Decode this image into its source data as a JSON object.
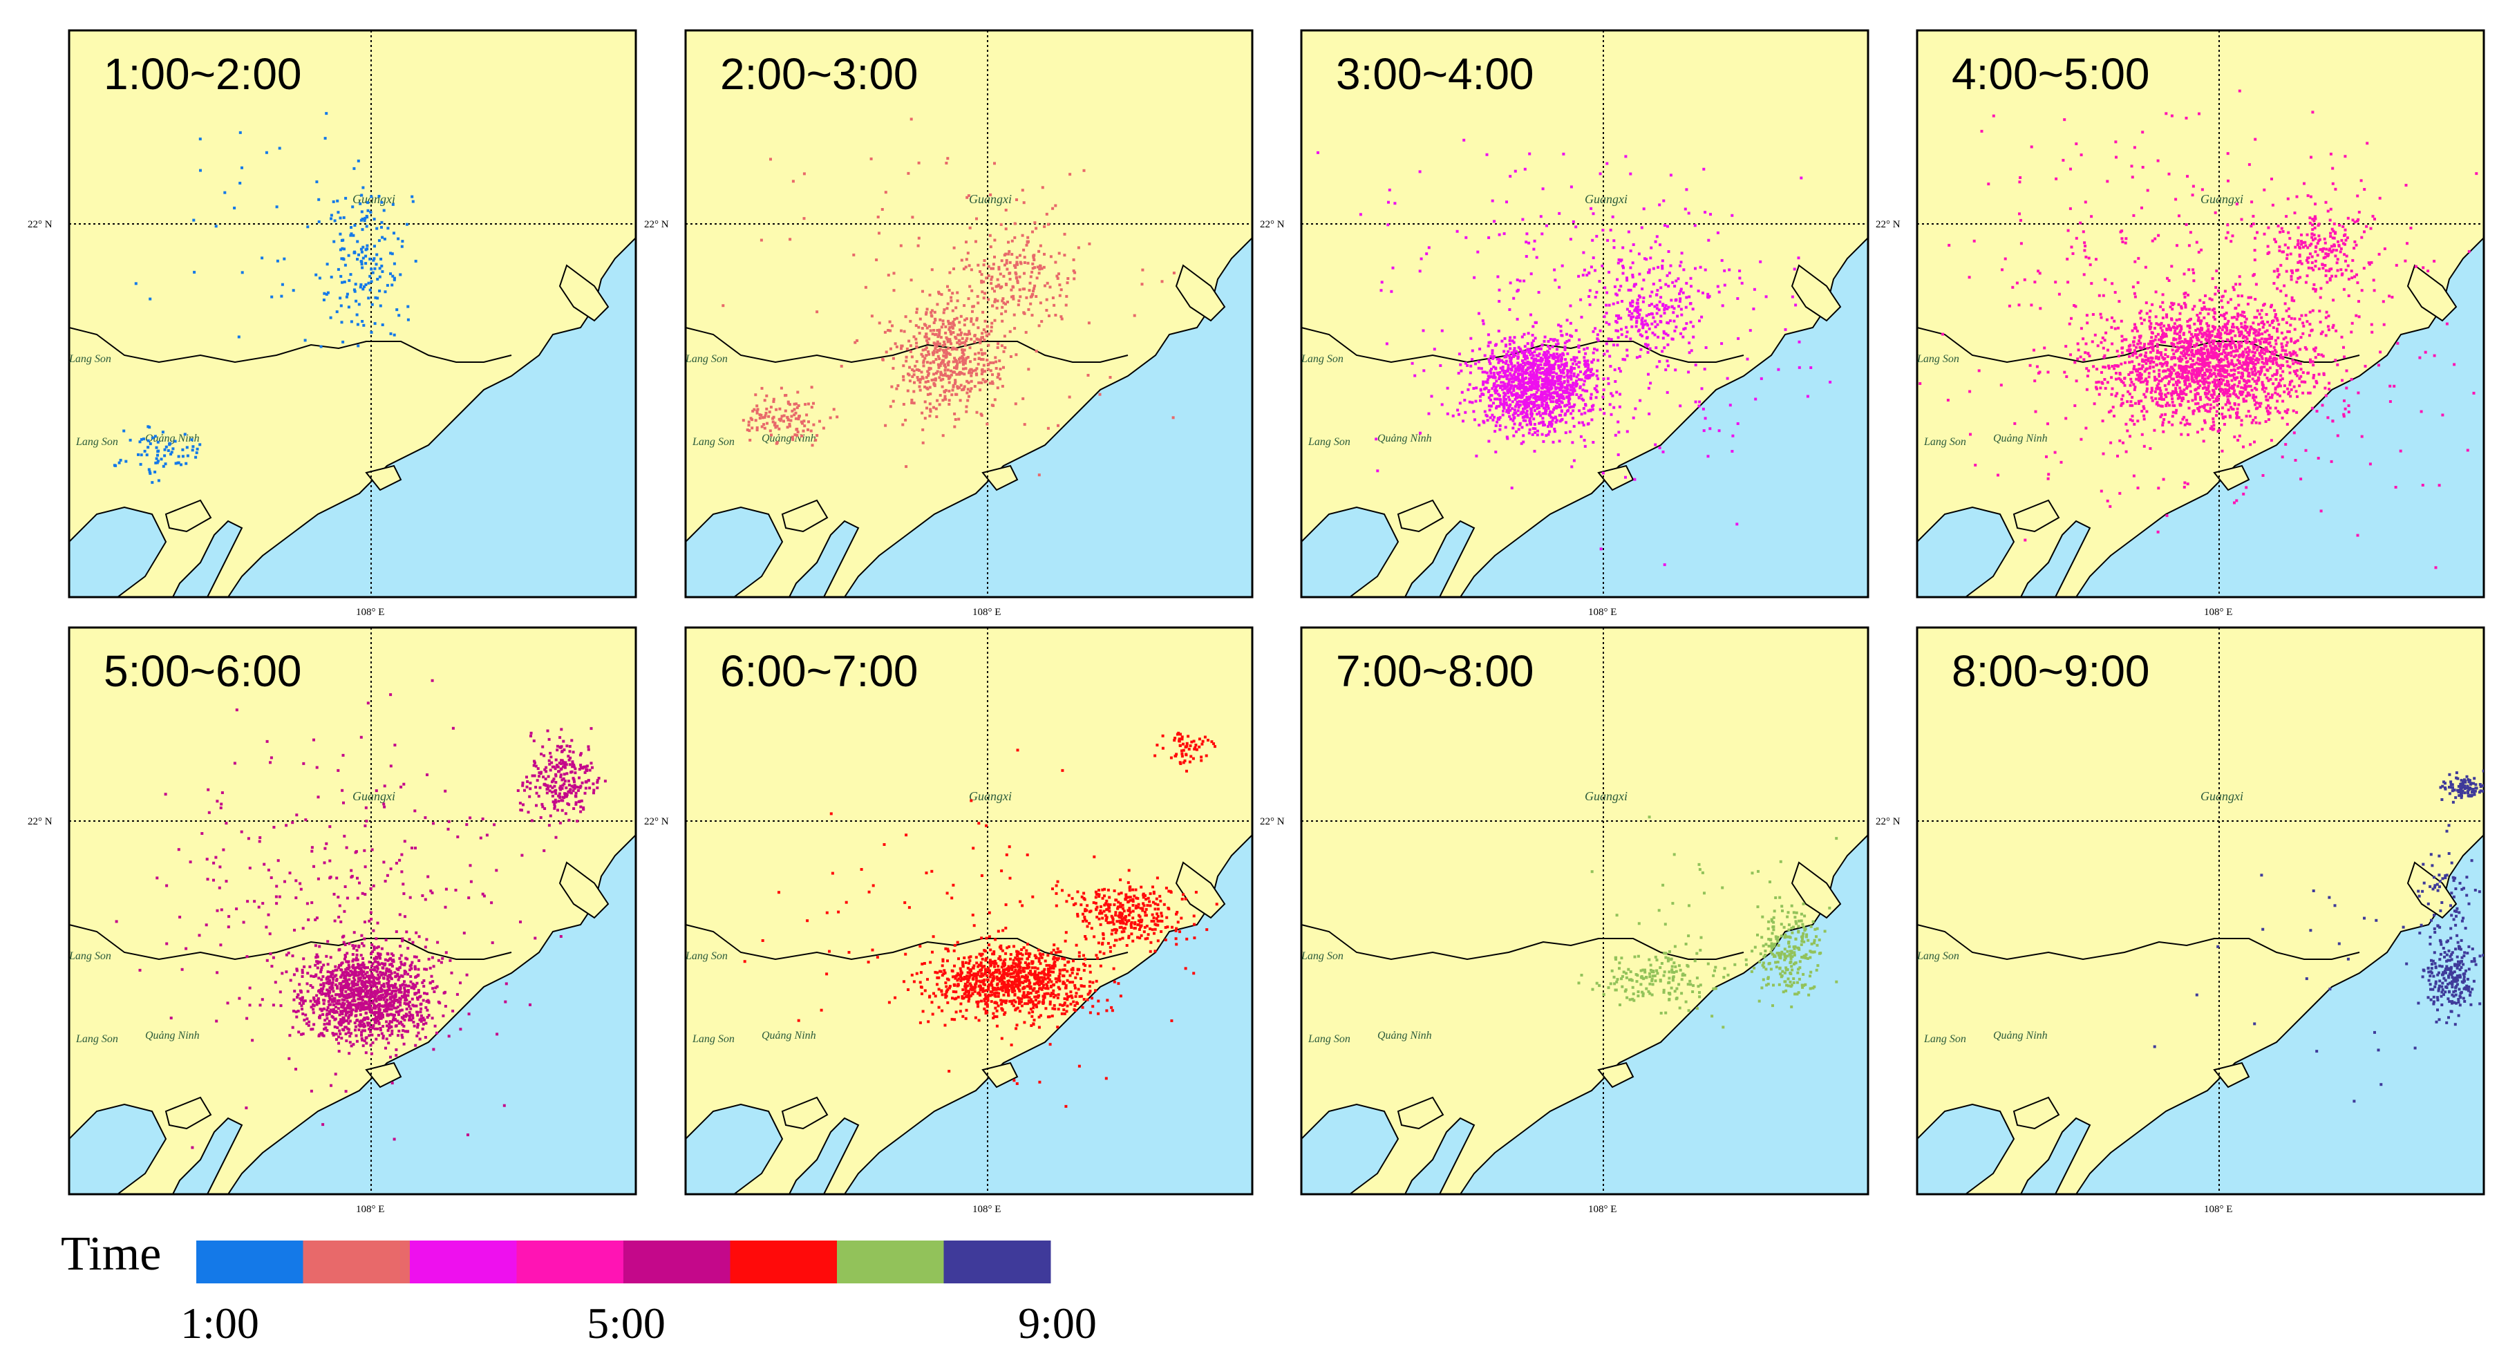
{
  "panels": [
    {
      "label": "1:00~2:00",
      "color": "#1479e8",
      "cluster": "early"
    },
    {
      "label": "2:00~3:00",
      "color": "#e8696a",
      "cluster": "central"
    },
    {
      "label": "3:00~4:00",
      "color": "#ee10ee",
      "cluster": "dense-west"
    },
    {
      "label": "4:00~5:00",
      "color": "#ff14b4",
      "cluster": "dense-central"
    },
    {
      "label": "5:00~6:00",
      "color": "#c4088a",
      "cluster": "dense-south"
    },
    {
      "label": "6:00~7:00",
      "color": "#ff0a0a",
      "cluster": "coastal"
    },
    {
      "label": "7:00~8:00",
      "color": "#92c25a",
      "cluster": "coastal-east"
    },
    {
      "label": "8:00~9:00",
      "color": "#3f3a9a",
      "cluster": "far-east"
    }
  ],
  "map_text": {
    "lat_label": "22° N",
    "lon_label": "108° E",
    "province_label": "Guangxi",
    "place_labels": [
      "Lang Son",
      "Lang Son",
      "Quảng Ninh"
    ]
  },
  "map_colors": {
    "land": "#fdfbb0",
    "sea": "#aee7fa",
    "outline": "#000000"
  },
  "legend": {
    "title": "Time",
    "ticks": [
      "1:00",
      "5:00",
      "9:00"
    ],
    "swatches": [
      "#1479e8",
      "#e8696a",
      "#ee10ee",
      "#ff14b4",
      "#c4088a",
      "#ff0a0a",
      "#92c25a",
      "#3f3a9a"
    ]
  }
}
